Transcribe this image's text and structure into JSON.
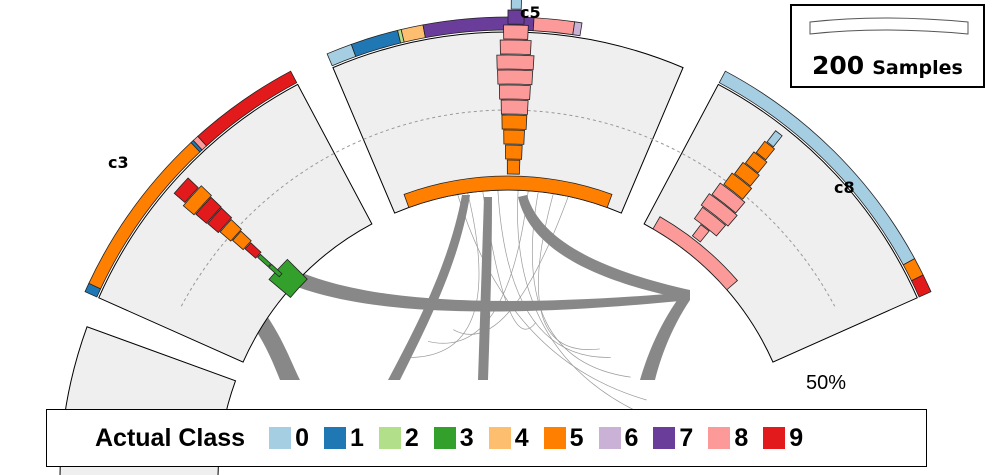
{
  "clusters": [
    {
      "id": "c3",
      "label": "c3"
    },
    {
      "id": "c5",
      "label": "c5"
    },
    {
      "id": "c8",
      "label": "c8"
    }
  ],
  "guide_label": "50%",
  "scale": {
    "value": "200",
    "unit": "Samples"
  },
  "legend": {
    "title": "Actual Class",
    "items": [
      {
        "label": "0",
        "color": "#a6cee3"
      },
      {
        "label": "1",
        "color": "#1f78b4"
      },
      {
        "label": "2",
        "color": "#b2df8a"
      },
      {
        "label": "3",
        "color": "#33a02c"
      },
      {
        "label": "4",
        "color": "#fdbf6f"
      },
      {
        "label": "5",
        "color": "#ff7f00"
      },
      {
        "label": "6",
        "color": "#cab2d6"
      },
      {
        "label": "7",
        "color": "#6a3d9a"
      },
      {
        "label": "8",
        "color": "#fb9a99"
      },
      {
        "label": "9",
        "color": "#e31a1c"
      }
    ]
  }
}
